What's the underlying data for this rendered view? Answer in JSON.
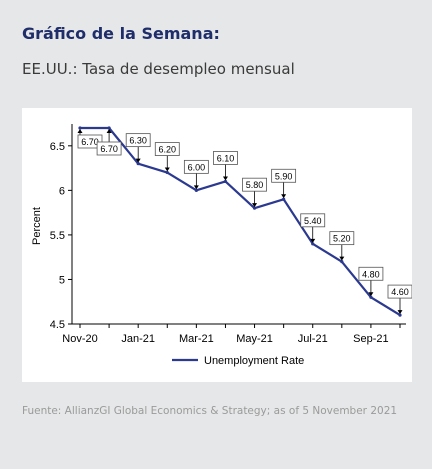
{
  "header": {
    "title": "Gráfico de la Semana:",
    "subtitle": "EE.UU.: Tasa de desempleo mensual"
  },
  "footer": {
    "source": "Fuente: AllianzGI Global Economics & Strategy; as of 5 November 2021"
  },
  "colors": {
    "title": "#1f2e6b",
    "line": "#2b3990",
    "background": "#e6e7e8"
  },
  "chart_data": {
    "type": "line",
    "ylabel": "Percent",
    "ylim": [
      4.5,
      6.7
    ],
    "yticks": [
      "6.5",
      "6",
      "5.5",
      "5",
      "4.5"
    ],
    "ytick_values": [
      6.5,
      6,
      5.5,
      5,
      4.5
    ],
    "xtick_labels": [
      "Nov-20",
      "Jan-21",
      "Mar-21",
      "May-21",
      "Jul-21",
      "Sep-21"
    ],
    "x": [
      "Nov-20",
      "Dec-20",
      "Jan-21",
      "Feb-21",
      "Mar-21",
      "Apr-21",
      "May-21",
      "Jun-21",
      "Jul-21",
      "Aug-21",
      "Sep-21",
      "Oct-21"
    ],
    "series": [
      {
        "name": "Unemployment Rate",
        "values": [
          6.7,
          6.7,
          6.3,
          6.2,
          6.0,
          6.1,
          5.8,
          5.9,
          5.4,
          5.2,
          4.8,
          4.6
        ],
        "labels": [
          "6.70",
          "6.70",
          "6.30",
          "6.20",
          "6.00",
          "6.10",
          "5.80",
          "5.90",
          "5.40",
          "5.20",
          "4.80",
          "4.60"
        ]
      }
    ],
    "legend": "bottom",
    "grid": false
  }
}
